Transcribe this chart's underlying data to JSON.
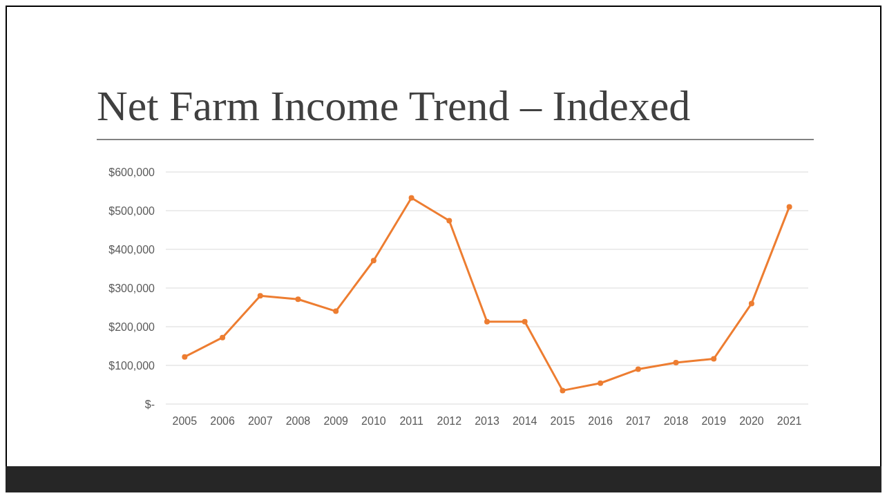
{
  "chart_data": {
    "type": "line",
    "title": "Net Farm Income Trend – Indexed",
    "categories": [
      "2005",
      "2006",
      "2007",
      "2008",
      "2009",
      "2010",
      "2011",
      "2012",
      "2013",
      "2014",
      "2015",
      "2016",
      "2017",
      "2018",
      "2019",
      "2020",
      "2021"
    ],
    "series": [
      {
        "color": "#ed7d31",
        "values": [
          122000,
          172000,
          280000,
          271000,
          240000,
          371000,
          533000,
          474000,
          213000,
          213000,
          35000,
          54000,
          90000,
          107000,
          117000,
          260000,
          510000
        ]
      }
    ],
    "ylim": [
      0,
      600000
    ],
    "yticks": [
      {
        "value": 0,
        "label": "$-"
      },
      {
        "value": 100000,
        "label": "$100,000"
      },
      {
        "value": 200000,
        "label": "$200,000"
      },
      {
        "value": 300000,
        "label": "$300,000"
      },
      {
        "value": 400000,
        "label": "$400,000"
      },
      {
        "value": 500000,
        "label": "$500,000"
      },
      {
        "value": 600000,
        "label": "$600,000"
      }
    ],
    "grid": "y",
    "marker": "circle",
    "line_style": "solid"
  }
}
